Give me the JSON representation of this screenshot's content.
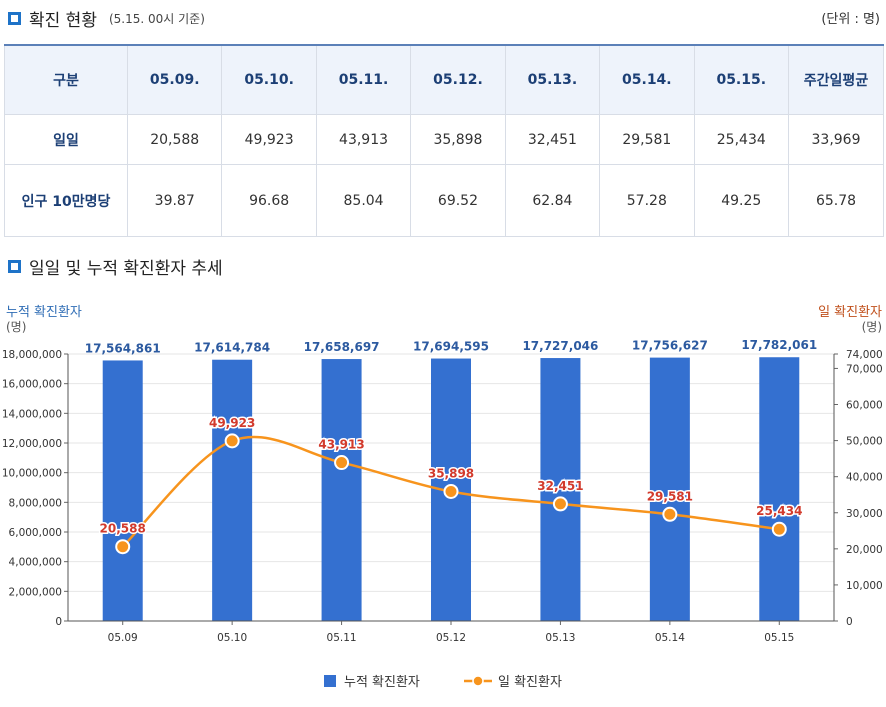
{
  "section1": {
    "title": "확진 현황",
    "subtitle": "(5.15. 00시 기준)",
    "unit": "(단위 : 명)"
  },
  "table": {
    "header": [
      "구분",
      "05.09.",
      "05.10.",
      "05.11.",
      "05.12.",
      "05.13.",
      "05.14.",
      "05.15.",
      "주간일평균"
    ],
    "rows": [
      {
        "label": "일일",
        "values": [
          "20,588",
          "49,923",
          "43,913",
          "35,898",
          "32,451",
          "29,581",
          "25,434",
          "33,969"
        ]
      },
      {
        "label": "인구 10만명당",
        "values": [
          "39.87",
          "96.68",
          "85.04",
          "69.52",
          "62.84",
          "57.28",
          "49.25",
          "65.78"
        ]
      }
    ]
  },
  "section2": {
    "title": "일일 및 누적 확진환자 추세"
  },
  "chart_data": {
    "type": "bar",
    "categories": [
      "05.09",
      "05.10",
      "05.11",
      "05.12",
      "05.13",
      "05.14",
      "05.15"
    ],
    "series": [
      {
        "name": "누적 확진환자",
        "type": "bar",
        "axis": "left",
        "values": [
          17564861,
          17614784,
          17658697,
          17694595,
          17727046,
          17756627,
          17782061
        ],
        "labels": [
          "17,564,861",
          "17,614,784",
          "17,658,697",
          "17,694,595",
          "17,727,046",
          "17,756,627",
          "17,782,061"
        ],
        "color": "#3470d0"
      },
      {
        "name": "일 확진환자",
        "type": "line",
        "axis": "right",
        "values": [
          20588,
          49923,
          43913,
          35898,
          32451,
          29581,
          25434
        ],
        "labels": [
          "20,588",
          "49,923",
          "43,913",
          "35,898",
          "32,451",
          "29,581",
          "25,434"
        ],
        "color": "#f7941d",
        "label_color": "#d23a2c"
      }
    ],
    "left_axis": {
      "title": "누적 확진환자",
      "unit": "(명)",
      "range": [
        0,
        18000000
      ],
      "ticks": [
        0,
        2000000,
        4000000,
        6000000,
        8000000,
        10000000,
        12000000,
        14000000,
        16000000,
        18000000
      ],
      "tick_labels": [
        "0",
        "2,000,000",
        "4,000,000",
        "6,000,000",
        "8,000,000",
        "10,000,000",
        "12,000,000",
        "14,000,000",
        "16,000,000",
        "18,000,000"
      ],
      "color": "#2f6db5"
    },
    "right_axis": {
      "title": "일 확진환자",
      "unit": "(명)",
      "range": [
        0,
        74000
      ],
      "ticks": [
        0,
        10000,
        20000,
        30000,
        40000,
        50000,
        60000,
        70000,
        74000
      ],
      "tick_labels": [
        "0",
        "10,000",
        "20,000",
        "30,000",
        "40,000",
        "50,000",
        "60,000",
        "70,000",
        "74,000"
      ],
      "color": "#c0501c"
    },
    "grid": true,
    "legend": "bottom"
  }
}
